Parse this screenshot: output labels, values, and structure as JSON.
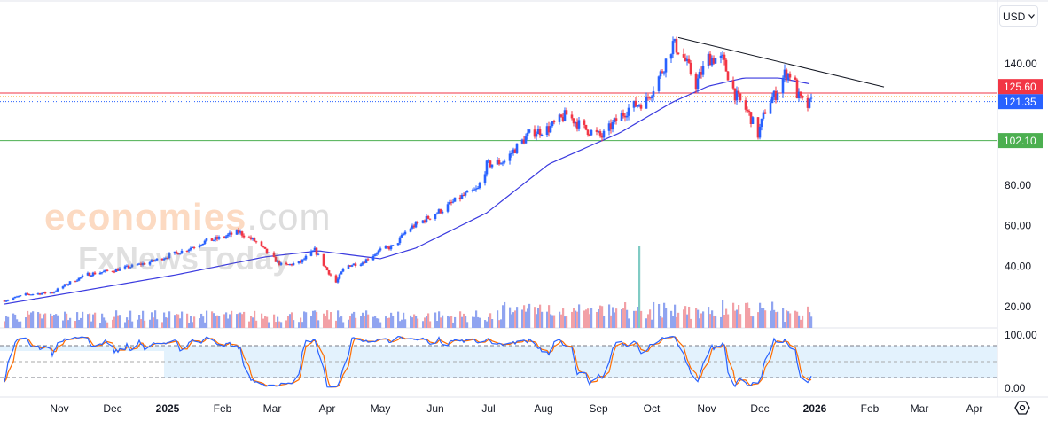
{
  "currency_selector": {
    "value": "USD"
  },
  "watermark": {
    "brand": "economies",
    "domain": ".com",
    "sub": "FxNewsToday"
  },
  "price_tags": [
    {
      "label": "125.60",
      "value": 125.6,
      "color": "#f23645",
      "style": "solid"
    },
    {
      "label": "121.35",
      "value": 121.35,
      "color": "#2962ff",
      "style": "dotted"
    },
    {
      "label": "102.10",
      "value": 102.1,
      "color": "#4caf50",
      "style": "solid"
    }
  ],
  "colors": {
    "up": "#2962ff",
    "down": "#f23645",
    "ma": "#3a3adf",
    "stoch_k": "#2962ff",
    "stoch_d": "#ff6d00",
    "band": "#e3f2fd"
  },
  "chart_data": {
    "type": "candlestick",
    "price_axis": {
      "ticks": [
        "140.00",
        "80.00",
        "60.00",
        "40.00",
        "20.00"
      ],
      "tick_values": [
        140,
        80,
        60,
        40,
        20
      ],
      "range": [
        0,
        171.5
      ]
    },
    "time_axis": {
      "labels": [
        "Nov",
        "Dec",
        "2025",
        "Feb",
        "Mar",
        "Apr",
        "May",
        "Jun",
        "Jul",
        "Aug",
        "Sep",
        "Oct",
        "Nov",
        "Dec",
        "2026",
        "Feb",
        "Mar",
        "Apr"
      ],
      "label_days": [
        31,
        61,
        92,
        123,
        151,
        182,
        212,
        243,
        273,
        304,
        335,
        365,
        396,
        426,
        457,
        488,
        516,
        547
      ]
    },
    "start_date": "2024-10-01",
    "close_keypoints_day_price": [
      [
        0,
        23
      ],
      [
        12,
        26
      ],
      [
        27,
        27
      ],
      [
        37,
        32
      ],
      [
        47,
        36
      ],
      [
        62,
        38
      ],
      [
        72,
        40
      ],
      [
        82,
        42
      ],
      [
        92,
        45
      ],
      [
        102,
        48
      ],
      [
        112,
        52
      ],
      [
        122,
        54
      ],
      [
        132,
        57
      ],
      [
        142,
        52
      ],
      [
        150,
        45
      ],
      [
        157,
        40
      ],
      [
        167,
        42
      ],
      [
        175,
        48
      ],
      [
        182,
        38
      ],
      [
        187,
        32
      ],
      [
        192,
        40
      ],
      [
        202,
        42
      ],
      [
        212,
        48
      ],
      [
        220,
        50
      ],
      [
        227,
        58
      ],
      [
        237,
        63
      ],
      [
        247,
        68
      ],
      [
        257,
        74
      ],
      [
        267,
        78
      ],
      [
        272,
        90
      ],
      [
        282,
        92
      ],
      [
        290,
        100
      ],
      [
        297,
        106
      ],
      [
        307,
        108
      ],
      [
        317,
        115
      ],
      [
        327,
        108
      ],
      [
        337,
        104
      ],
      [
        345,
        112
      ],
      [
        352,
        118
      ],
      [
        362,
        122
      ],
      [
        370,
        135
      ],
      [
        377,
        150
      ],
      [
        382,
        145
      ],
      [
        390,
        130
      ],
      [
        397,
        143
      ],
      [
        405,
        142
      ],
      [
        412,
        125
      ],
      [
        420,
        115
      ],
      [
        425,
        105
      ],
      [
        430,
        120
      ],
      [
        435,
        125
      ],
      [
        440,
        135
      ],
      [
        445,
        135
      ],
      [
        447,
        125
      ],
      [
        452,
        118
      ],
      [
        455,
        121
      ]
    ],
    "moving_average_day_price": [
      [
        0,
        21.3
      ],
      [
        97,
        35.8
      ],
      [
        147,
        44.6
      ],
      [
        177,
        47.6
      ],
      [
        212,
        43.7
      ],
      [
        232,
        49
      ],
      [
        272,
        66.4
      ],
      [
        307,
        90.5
      ],
      [
        347,
        105.9
      ],
      [
        377,
        121.2
      ],
      [
        397,
        129
      ],
      [
        417,
        133
      ],
      [
        437,
        133
      ],
      [
        455,
        130
      ]
    ],
    "trendline_day_price": [
      [
        380,
        153
      ],
      [
        496,
        128.6
      ]
    ],
    "volume_spike_day": 358,
    "stochastic": {
      "ticks": [
        "100.00",
        "0.00"
      ],
      "levels": [
        80,
        50,
        20
      ],
      "range": [
        0,
        100
      ]
    }
  }
}
